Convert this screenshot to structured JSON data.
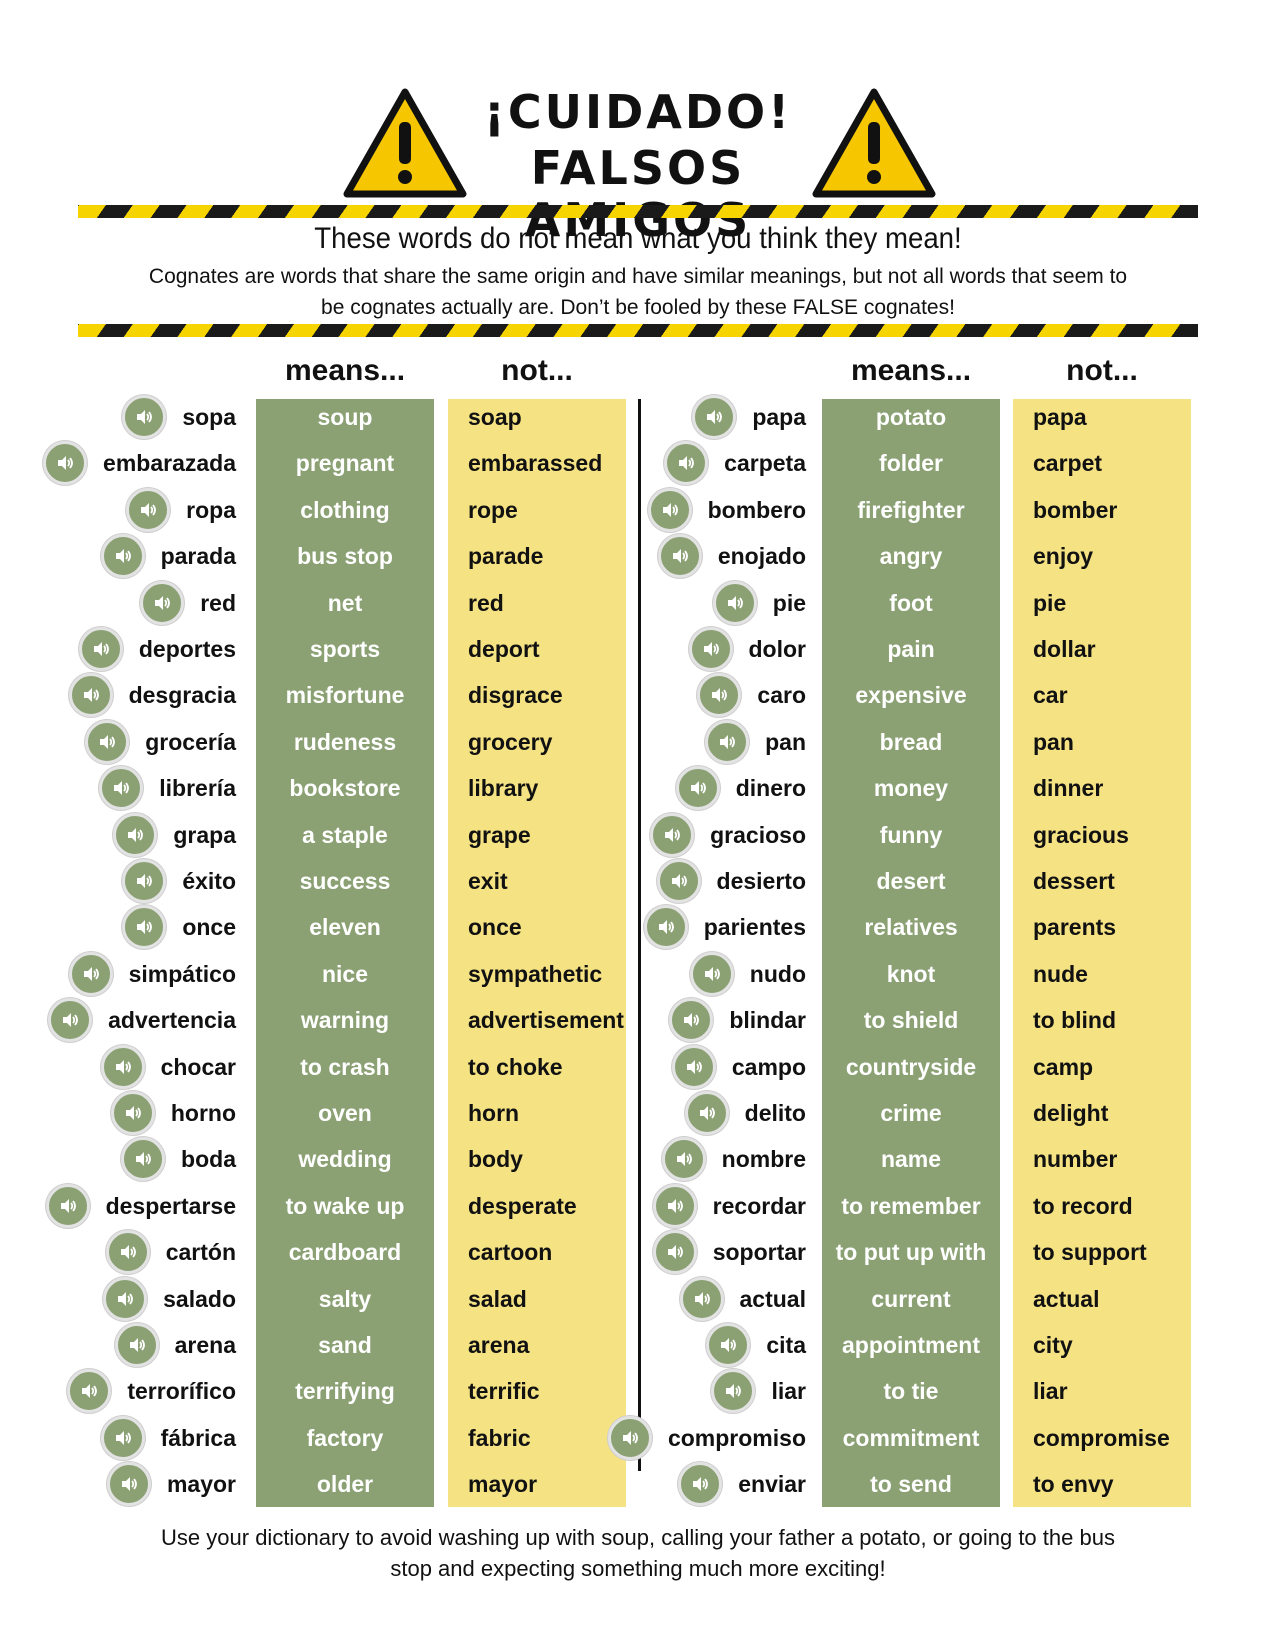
{
  "title_line1": "¡CUIDADO!",
  "title_line2": "FALSOS AMIGOS",
  "tagline": "These words do not mean what you think they mean!",
  "intro": "Cognates are words that share the same origin and have similar meanings, but not all words that seem to be cognates actually are. Don’t be fooled by these FALSE cognates!",
  "column_headers": {
    "means": "means...",
    "not": "not..."
  },
  "icons": {
    "warning": "warning-triangle-icon",
    "speaker": "speaker-icon"
  },
  "colors": {
    "green": "#8ba174",
    "yellow": "#f5e283",
    "stripe_yellow": "#f6d400"
  },
  "left_words": [
    {
      "spanish": "sopa",
      "means": "soup",
      "not": "soap"
    },
    {
      "spanish": "embarazada",
      "means": "pregnant",
      "not": "embarassed"
    },
    {
      "spanish": "ropa",
      "means": "clothing",
      "not": "rope"
    },
    {
      "spanish": "parada",
      "means": "bus stop",
      "not": "parade"
    },
    {
      "spanish": "red",
      "means": "net",
      "not": "red"
    },
    {
      "spanish": "deportes",
      "means": "sports",
      "not": "deport"
    },
    {
      "spanish": "desgracia",
      "means": "misfortune",
      "not": "disgrace"
    },
    {
      "spanish": "grocería",
      "means": "rudeness",
      "not": "grocery"
    },
    {
      "spanish": "librería",
      "means": "bookstore",
      "not": "library"
    },
    {
      "spanish": "grapa",
      "means": "a staple",
      "not": "grape"
    },
    {
      "spanish": "éxito",
      "means": "success",
      "not": "exit"
    },
    {
      "spanish": "once",
      "means": "eleven",
      "not": "once"
    },
    {
      "spanish": "simpático",
      "means": "nice",
      "not": "sympathetic"
    },
    {
      "spanish": "advertencia",
      "means": "warning",
      "not": "advertisement"
    },
    {
      "spanish": "chocar",
      "means": "to crash",
      "not": "to choke"
    },
    {
      "spanish": "horno",
      "means": "oven",
      "not": "horn"
    },
    {
      "spanish": "boda",
      "means": "wedding",
      "not": "body"
    },
    {
      "spanish": "despertarse",
      "means": "to wake up",
      "not": "desperate"
    },
    {
      "spanish": "cartón",
      "means": "cardboard",
      "not": "cartoon"
    },
    {
      "spanish": "salado",
      "means": "salty",
      "not": "salad"
    },
    {
      "spanish": "arena",
      "means": "sand",
      "not": "arena"
    },
    {
      "spanish": "terrorífico",
      "means": "terrifying",
      "not": "terrific"
    },
    {
      "spanish": "fábrica",
      "means": "factory",
      "not": "fabric"
    },
    {
      "spanish": "mayor",
      "means": "older",
      "not": "mayor"
    }
  ],
  "right_words": [
    {
      "spanish": "papa",
      "means": "potato",
      "not": "papa"
    },
    {
      "spanish": "carpeta",
      "means": "folder",
      "not": "carpet"
    },
    {
      "spanish": "bombero",
      "means": "firefighter",
      "not": "bomber"
    },
    {
      "spanish": "enojado",
      "means": "angry",
      "not": "enjoy"
    },
    {
      "spanish": "pie",
      "means": "foot",
      "not": "pie"
    },
    {
      "spanish": "dolor",
      "means": "pain",
      "not": "dollar"
    },
    {
      "spanish": "caro",
      "means": "expensive",
      "not": "car"
    },
    {
      "spanish": "pan",
      "means": "bread",
      "not": "pan"
    },
    {
      "spanish": "dinero",
      "means": "money",
      "not": "dinner"
    },
    {
      "spanish": "gracioso",
      "means": "funny",
      "not": "gracious"
    },
    {
      "spanish": "desierto",
      "means": "desert",
      "not": "dessert"
    },
    {
      "spanish": "parientes",
      "means": "relatives",
      "not": "parents"
    },
    {
      "spanish": "nudo",
      "means": "knot",
      "not": "nude"
    },
    {
      "spanish": "blindar",
      "means": "to shield",
      "not": "to blind"
    },
    {
      "spanish": "campo",
      "means": "countryside",
      "not": "camp"
    },
    {
      "spanish": "delito",
      "means": "crime",
      "not": "delight"
    },
    {
      "spanish": "nombre",
      "means": "name",
      "not": "number"
    },
    {
      "spanish": "recordar",
      "means": "to remember",
      "not": "to record"
    },
    {
      "spanish": "soportar",
      "means": "to put up with",
      "not": "to support"
    },
    {
      "spanish": "actual",
      "means": "current",
      "not": "actual"
    },
    {
      "spanish": "cita",
      "means": "appointment",
      "not": "city"
    },
    {
      "spanish": "liar",
      "means": "to tie",
      "not": "liar"
    },
    {
      "spanish": "compromiso",
      "means": "commitment",
      "not": "compromise"
    },
    {
      "spanish": "enviar",
      "means": "to send",
      "not": "to envy"
    }
  ],
  "footer": "Use your dictionary to avoid washing up with soup, calling your father a potato, or going to the bus stop and expecting something much more exciting!"
}
